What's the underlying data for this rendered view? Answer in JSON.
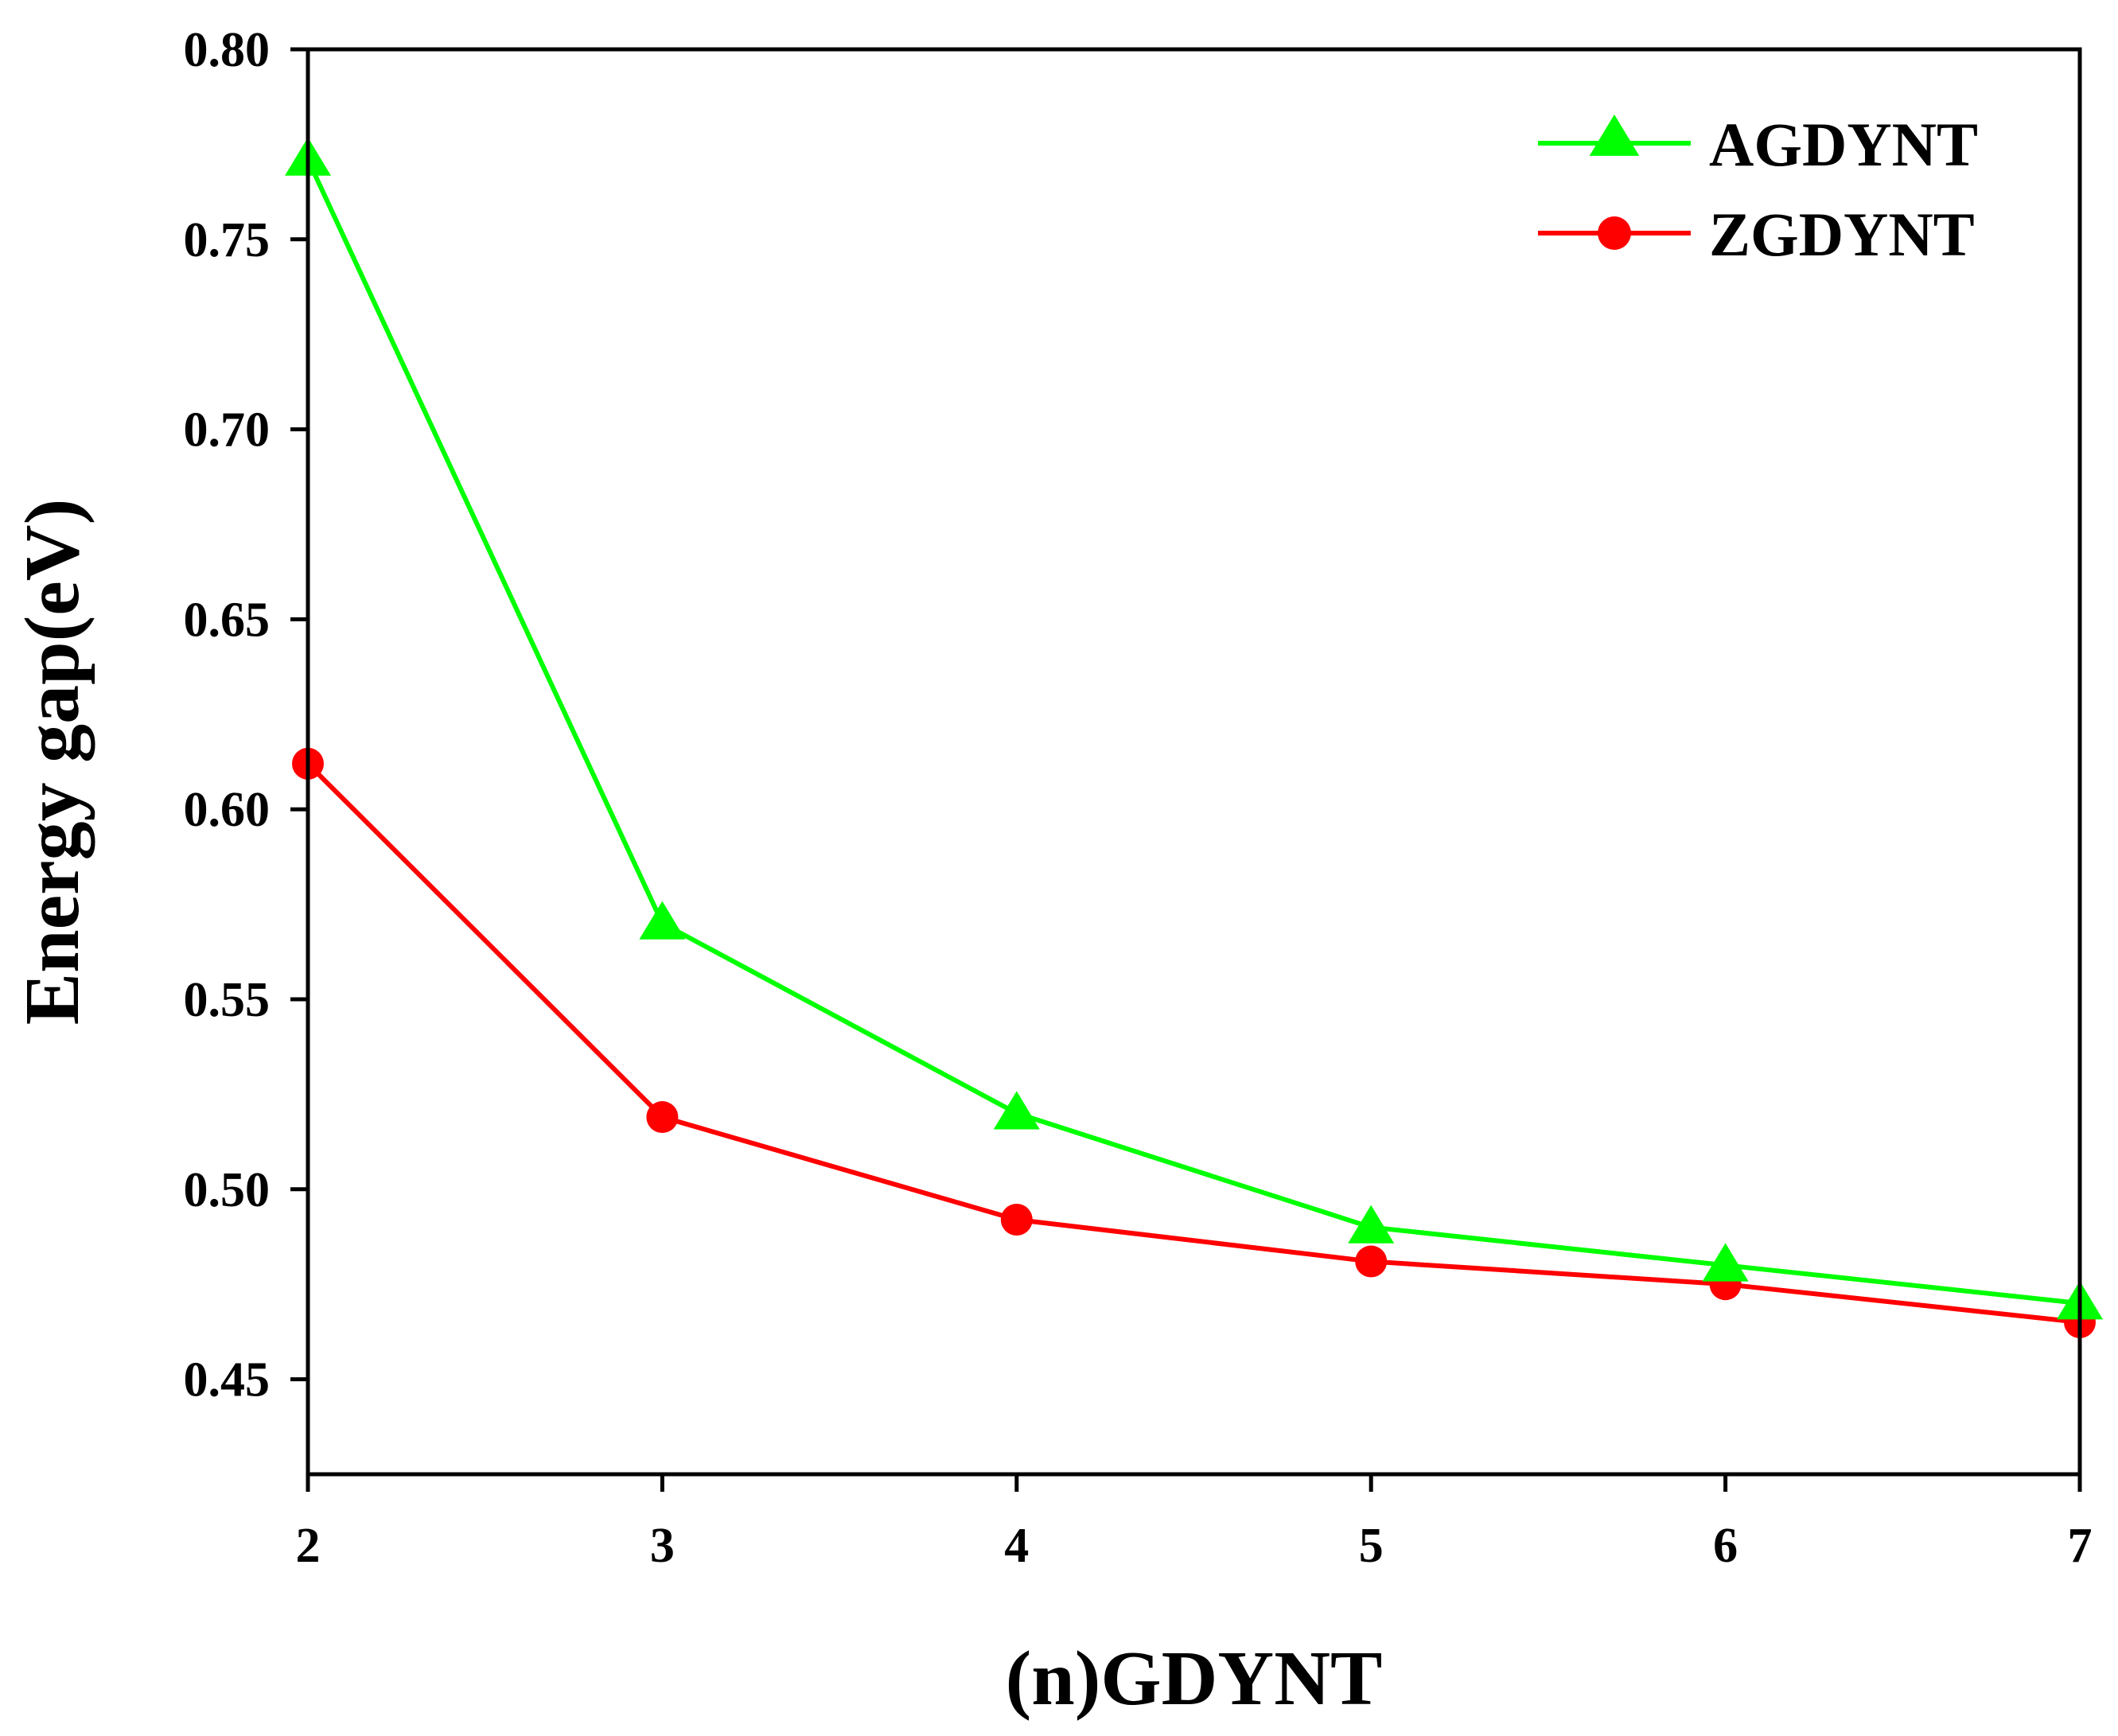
{
  "chart_data": {
    "type": "line",
    "title": "",
    "xlabel": "(n)GDYNT",
    "ylabel": "Energy gap(eV)",
    "x": [
      2,
      3,
      4,
      5,
      6,
      7
    ],
    "xlim": [
      2,
      7
    ],
    "ylim": [
      0.425,
      0.8
    ],
    "xticks": [
      2,
      3,
      4,
      5,
      6,
      7
    ],
    "xtick_labels": [
      "2",
      "3",
      "4",
      "5",
      "6",
      "7"
    ],
    "yticks": [
      0.45,
      0.5,
      0.55,
      0.6,
      0.65,
      0.7,
      0.75,
      0.8
    ],
    "ytick_labels": [
      "0.45",
      "0.50",
      "0.55",
      "0.60",
      "0.65",
      "0.70",
      "0.75",
      "0.80"
    ],
    "grid": false,
    "legend_position": "top-right",
    "series": [
      {
        "name": "AGDYNT",
        "marker": "triangle",
        "color": "#00ff00",
        "values": [
          0.771,
          0.57,
          0.52,
          0.49,
          0.48,
          0.47
        ]
      },
      {
        "name": "ZGDYNT",
        "marker": "circle",
        "color": "#ff0000",
        "values": [
          0.612,
          0.519,
          0.492,
          0.481,
          0.475,
          0.465
        ]
      }
    ]
  }
}
